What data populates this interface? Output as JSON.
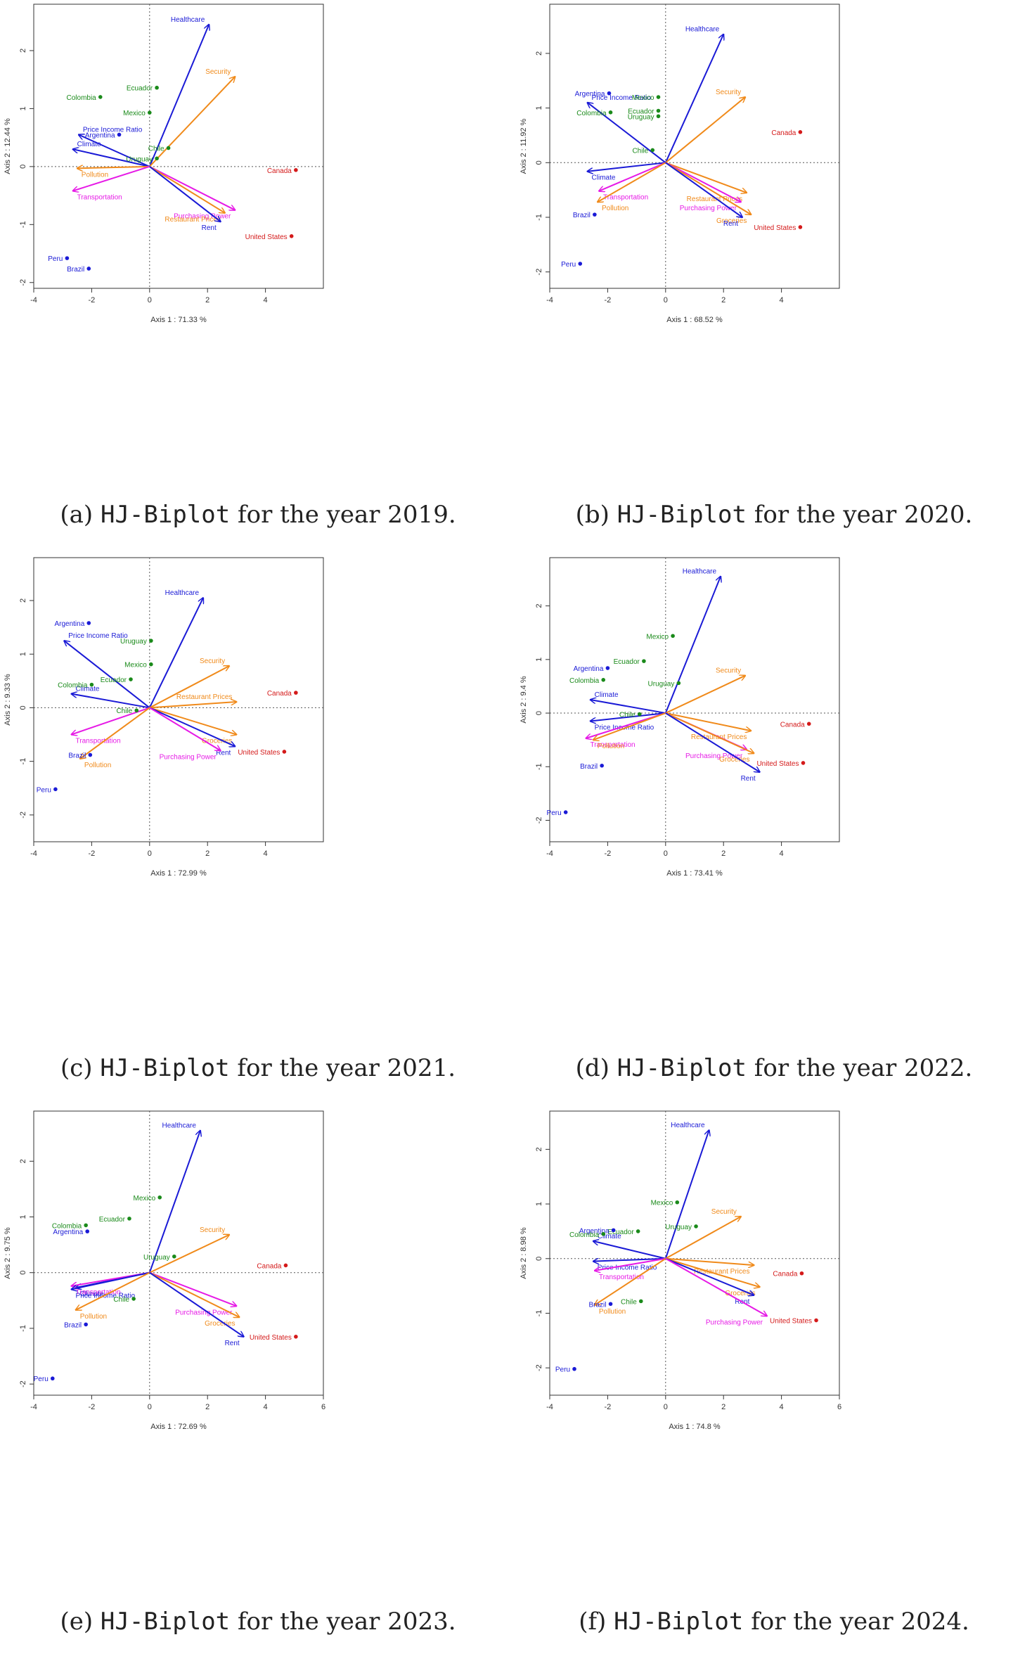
{
  "colors": {
    "green": "#1a8a1a",
    "blue": "#1a1ad6",
    "red": "#d41a1a",
    "orange": "#f08a1a",
    "magenta": "#e61ae6"
  },
  "chart_data": [
    {
      "type": "scatter",
      "title": "HJ-Biplot 2019",
      "caption_prefix": "(a)",
      "caption_mono": "HJ-Biplot",
      "caption_suffix": "for the year 2019.",
      "xlabel": "Axis 1 :  71.33 %",
      "ylabel": "Axis 2 :  12.44 %",
      "xlim": [
        -4,
        6
      ],
      "ylim": [
        -2.1,
        2.8
      ],
      "xticks": [
        "-4",
        "-2",
        "0",
        "2",
        "4"
      ],
      "yticks": [
        "-2",
        "-1",
        "0",
        "1",
        "2"
      ],
      "points": [
        {
          "label": "Ecuador",
          "x": 0.25,
          "y": 1.36,
          "color": "green"
        },
        {
          "label": "Colombia",
          "x": -1.7,
          "y": 1.2,
          "color": "green"
        },
        {
          "label": "Mexico",
          "x": 0.0,
          "y": 0.93,
          "color": "green"
        },
        {
          "label": "Argentina",
          "x": -1.05,
          "y": 0.55,
          "color": "blue"
        },
        {
          "label": "Chile",
          "x": 0.65,
          "y": 0.32,
          "color": "green"
        },
        {
          "label": "Uruguay",
          "x": 0.25,
          "y": 0.14,
          "color": "green"
        },
        {
          "label": "Canada",
          "x": 5.05,
          "y": -0.06,
          "color": "red"
        },
        {
          "label": "United States",
          "x": 4.9,
          "y": -1.2,
          "color": "red"
        },
        {
          "label": "Peru",
          "x": -2.85,
          "y": -1.58,
          "color": "blue"
        },
        {
          "label": "Brazil",
          "x": -2.1,
          "y": -1.76,
          "color": "blue"
        }
      ],
      "arrows": [
        {
          "label": "Healthcare",
          "x": 2.05,
          "y": 2.45,
          "color": "blue"
        },
        {
          "label": "Security",
          "x": 2.95,
          "y": 1.55,
          "color": "orange"
        },
        {
          "label": "Price Income Ratio",
          "x": -2.45,
          "y": 0.55,
          "color": "blue"
        },
        {
          "label": "Climate",
          "x": -2.65,
          "y": 0.3,
          "color": "blue"
        },
        {
          "label": "Pollution",
          "x": -2.5,
          "y": -0.03,
          "color": "orange"
        },
        {
          "label": "Transportation",
          "x": -2.65,
          "y": -0.42,
          "color": "magenta"
        },
        {
          "label": "Purchasing Power",
          "x": 2.95,
          "y": -0.75,
          "color": "magenta"
        },
        {
          "label": "Restaurant Prices",
          "x": 2.6,
          "y": -0.8,
          "color": "orange"
        },
        {
          "label": "Rent",
          "x": 2.45,
          "y": -0.95,
          "color": "blue"
        }
      ]
    },
    {
      "type": "scatter",
      "title": "HJ-Biplot 2020",
      "caption_prefix": "(b)",
      "caption_mono": "HJ-Biplot",
      "caption_suffix": "for the year 2020.",
      "xlabel": "Axis 1 :  68.52 %",
      "ylabel": "Axis 2 :  11.92 %",
      "xlim": [
        -4,
        6
      ],
      "ylim": [
        -2.3,
        2.9
      ],
      "xticks": [
        "-4",
        "-2",
        "0",
        "2",
        "4"
      ],
      "yticks": [
        "-2",
        "-1",
        "0",
        "1",
        "2"
      ],
      "points": [
        {
          "label": "Argentina",
          "x": -1.95,
          "y": 1.27,
          "color": "blue"
        },
        {
          "label": "Mexico",
          "x": -0.25,
          "y": 1.2,
          "color": "green"
        },
        {
          "label": "Ecuador",
          "x": -0.25,
          "y": 0.95,
          "color": "green"
        },
        {
          "label": "Colombia",
          "x": -1.9,
          "y": 0.92,
          "color": "green"
        },
        {
          "label": "Uruguay",
          "x": -0.25,
          "y": 0.85,
          "color": "green"
        },
        {
          "label": "Canada",
          "x": 4.65,
          "y": 0.56,
          "color": "red"
        },
        {
          "label": "Chile",
          "x": -0.45,
          "y": 0.23,
          "color": "green"
        },
        {
          "label": "Brazil",
          "x": -2.45,
          "y": -0.95,
          "color": "blue"
        },
        {
          "label": "United States",
          "x": 4.65,
          "y": -1.18,
          "color": "red"
        },
        {
          "label": "Peru",
          "x": -2.95,
          "y": -1.85,
          "color": "blue"
        }
      ],
      "arrows": [
        {
          "label": "Healthcare",
          "x": 2.0,
          "y": 2.35,
          "color": "blue"
        },
        {
          "label": "Security",
          "x": 2.75,
          "y": 1.2,
          "color": "orange"
        },
        {
          "label": "Price Income Ratio",
          "x": -2.7,
          "y": 1.1,
          "color": "blue"
        },
        {
          "label": "Climate",
          "x": -2.7,
          "y": -0.16,
          "color": "blue"
        },
        {
          "label": "Transportation",
          "x": -2.3,
          "y": -0.52,
          "color": "magenta"
        },
        {
          "label": "Pollution",
          "x": -2.35,
          "y": -0.72,
          "color": "orange"
        },
        {
          "label": "Restaurant Prices",
          "x": 2.8,
          "y": -0.55,
          "color": "orange"
        },
        {
          "label": "Purchasing Power",
          "x": 2.6,
          "y": -0.72,
          "color": "magenta"
        },
        {
          "label": "Groceries",
          "x": 2.95,
          "y": -0.95,
          "color": "orange"
        },
        {
          "label": "Rent",
          "x": 2.65,
          "y": -1.0,
          "color": "blue"
        }
      ]
    },
    {
      "type": "scatter",
      "title": "HJ-Biplot 2021",
      "caption_prefix": "(c)",
      "caption_mono": "HJ-Biplot",
      "caption_suffix": "for the year 2021.",
      "xlabel": "Axis 1 :  72.99 %",
      "ylabel": "Axis 2 :  9.33 %",
      "xlim": [
        -4,
        6
      ],
      "ylim": [
        -2.5,
        2.8
      ],
      "xticks": [
        "-4",
        "-2",
        "0",
        "2",
        "4"
      ],
      "yticks": [
        "-2",
        "-1",
        "0",
        "1",
        "2"
      ],
      "points": [
        {
          "label": "Argentina",
          "x": -2.1,
          "y": 1.58,
          "color": "blue"
        },
        {
          "label": "Uruguay",
          "x": 0.05,
          "y": 1.25,
          "color": "green"
        },
        {
          "label": "Mexico",
          "x": 0.05,
          "y": 0.81,
          "color": "green"
        },
        {
          "label": "Ecuador",
          "x": -0.65,
          "y": 0.53,
          "color": "green"
        },
        {
          "label": "Colombia",
          "x": -2.0,
          "y": 0.43,
          "color": "green"
        },
        {
          "label": "Canada",
          "x": 5.05,
          "y": 0.28,
          "color": "red"
        },
        {
          "label": "Chile",
          "x": -0.45,
          "y": -0.05,
          "color": "green"
        },
        {
          "label": "United States",
          "x": 4.65,
          "y": -0.82,
          "color": "red"
        },
        {
          "label": "Brazil",
          "x": -2.05,
          "y": -0.88,
          "color": "blue"
        },
        {
          "label": "Peru",
          "x": -3.25,
          "y": -1.52,
          "color": "blue"
        }
      ],
      "arrows": [
        {
          "label": "Healthcare",
          "x": 1.85,
          "y": 2.05,
          "color": "blue"
        },
        {
          "label": "Price Income Ratio",
          "x": -2.95,
          "y": 1.25,
          "color": "blue"
        },
        {
          "label": "Security",
          "x": 2.75,
          "y": 0.78,
          "color": "orange"
        },
        {
          "label": "Climate",
          "x": -2.7,
          "y": 0.26,
          "color": "blue"
        },
        {
          "label": "Restaurant Prices",
          "x": 3.0,
          "y": 0.11,
          "color": "orange"
        },
        {
          "label": "Transportation",
          "x": -2.7,
          "y": -0.5,
          "color": "magenta"
        },
        {
          "label": "Groceries",
          "x": 3.0,
          "y": -0.5,
          "color": "orange"
        },
        {
          "label": "Rent",
          "x": 2.95,
          "y": -0.72,
          "color": "blue"
        },
        {
          "label": "Purchasing Power",
          "x": 2.45,
          "y": -0.8,
          "color": "magenta"
        },
        {
          "label": "Pollution",
          "x": -2.4,
          "y": -0.95,
          "color": "orange"
        }
      ]
    },
    {
      "type": "scatter",
      "title": "HJ-Biplot 2022",
      "caption_prefix": "(d)",
      "caption_mono": "HJ-Biplot",
      "caption_suffix": "for the year 2022.",
      "xlabel": "Axis 1 :  73.41 %",
      "ylabel": "Axis 2 :  9.4 %",
      "xlim": [
        -4,
        6
      ],
      "ylim": [
        -2.4,
        2.9
      ],
      "xticks": [
        "-4",
        "-2",
        "0",
        "2",
        "4"
      ],
      "yticks": [
        "-2",
        "-1",
        "0",
        "1",
        "2"
      ],
      "points": [
        {
          "label": "Mexico",
          "x": 0.25,
          "y": 1.44,
          "color": "green"
        },
        {
          "label": "Ecuador",
          "x": -0.75,
          "y": 0.97,
          "color": "green"
        },
        {
          "label": "Argentina",
          "x": -2.0,
          "y": 0.84,
          "color": "blue"
        },
        {
          "label": "Colombia",
          "x": -2.15,
          "y": 0.62,
          "color": "green"
        },
        {
          "label": "Uruguay",
          "x": 0.45,
          "y": 0.56,
          "color": "green"
        },
        {
          "label": "Chile",
          "x": -0.9,
          "y": -0.02,
          "color": "green"
        },
        {
          "label": "Canada",
          "x": 4.95,
          "y": -0.2,
          "color": "red"
        },
        {
          "label": "United States",
          "x": 4.75,
          "y": -0.93,
          "color": "red"
        },
        {
          "label": "Brazil",
          "x": -2.2,
          "y": -0.98,
          "color": "blue"
        },
        {
          "label": "Peru",
          "x": -3.45,
          "y": -1.85,
          "color": "blue"
        }
      ],
      "arrows": [
        {
          "label": "Healthcare",
          "x": 1.9,
          "y": 2.55,
          "color": "blue"
        },
        {
          "label": "Security",
          "x": 2.75,
          "y": 0.7,
          "color": "orange"
        },
        {
          "label": "Climate",
          "x": -2.6,
          "y": 0.25,
          "color": "blue"
        },
        {
          "label": "Price Income Ratio",
          "x": -2.6,
          "y": -0.15,
          "color": "blue"
        },
        {
          "label": "Transportation",
          "x": -2.75,
          "y": -0.47,
          "color": "magenta"
        },
        {
          "label": "Pollution",
          "x": -2.5,
          "y": -0.5,
          "color": "orange"
        },
        {
          "label": "Restaurant Prices",
          "x": 2.95,
          "y": -0.33,
          "color": "orange"
        },
        {
          "label": "Purchasing Power",
          "x": 2.8,
          "y": -0.68,
          "color": "magenta"
        },
        {
          "label": "Groceries",
          "x": 3.05,
          "y": -0.75,
          "color": "orange"
        },
        {
          "label": "Rent",
          "x": 3.25,
          "y": -1.1,
          "color": "blue"
        }
      ]
    },
    {
      "type": "scatter",
      "title": "HJ-Biplot 2023",
      "caption_prefix": "(e)",
      "caption_mono": "HJ-Biplot",
      "caption_suffix": "for the year 2023.",
      "xlabel": "Axis 1 :  72.69 %",
      "ylabel": "Axis 2 :  9.75 %",
      "xlim": [
        -4,
        6
      ],
      "ylim": [
        -2.2,
        2.9
      ],
      "xticks": [
        "-4",
        "-2",
        "0",
        "2",
        "4",
        "6"
      ],
      "yticks": [
        "-2",
        "-1",
        "0",
        "1",
        "2"
      ],
      "points": [
        {
          "label": "Mexico",
          "x": 0.35,
          "y": 1.35,
          "color": "green"
        },
        {
          "label": "Ecuador",
          "x": -0.7,
          "y": 0.97,
          "color": "green"
        },
        {
          "label": "Colombia",
          "x": -2.2,
          "y": 0.85,
          "color": "green"
        },
        {
          "label": "Argentina",
          "x": -2.15,
          "y": 0.74,
          "color": "blue"
        },
        {
          "label": "Uruguay",
          "x": 0.85,
          "y": 0.29,
          "color": "green"
        },
        {
          "label": "Canada",
          "x": 4.7,
          "y": 0.13,
          "color": "red"
        },
        {
          "label": "Chile",
          "x": -0.55,
          "y": -0.47,
          "color": "green"
        },
        {
          "label": "Brazil",
          "x": -2.2,
          "y": -0.93,
          "color": "blue"
        },
        {
          "label": "United States",
          "x": 5.05,
          "y": -1.15,
          "color": "red"
        },
        {
          "label": "Peru",
          "x": -3.35,
          "y": -1.9,
          "color": "blue"
        }
      ],
      "arrows": [
        {
          "label": "Healthcare",
          "x": 1.75,
          "y": 2.55,
          "color": "blue"
        },
        {
          "label": "Security",
          "x": 2.75,
          "y": 0.68,
          "color": "orange"
        },
        {
          "label": "Climate",
          "x": -2.55,
          "y": -0.27,
          "color": "blue"
        },
        {
          "label": "Transportation",
          "x": -2.7,
          "y": -0.24,
          "color": "magenta"
        },
        {
          "label": "Price Income Ratio",
          "x": -2.7,
          "y": -0.3,
          "color": "blue"
        },
        {
          "label": "Pollution",
          "x": -2.55,
          "y": -0.67,
          "color": "orange"
        },
        {
          "label": "Purchasing Power",
          "x": 3.0,
          "y": -0.6,
          "color": "magenta"
        },
        {
          "label": "Groceries",
          "x": 3.1,
          "y": -0.8,
          "color": "orange"
        },
        {
          "label": "Rent",
          "x": 3.25,
          "y": -1.15,
          "color": "blue"
        }
      ]
    },
    {
      "type": "scatter",
      "title": "HJ-Biplot 2024",
      "caption_prefix": "(f)",
      "caption_mono": "HJ-Biplot",
      "caption_suffix": "for the year 2024.",
      "xlabel": "Axis 1 :  74.8 %",
      "ylabel": "Axis 2 :  8.98 %",
      "xlim": [
        -4,
        6
      ],
      "ylim": [
        -2.5,
        2.7
      ],
      "xticks": [
        "-4",
        "-2",
        "0",
        "2",
        "4",
        "6"
      ],
      "yticks": [
        "-2",
        "-1",
        "0",
        "1",
        "2"
      ],
      "points": [
        {
          "label": "Mexico",
          "x": 0.4,
          "y": 1.03,
          "color": "green"
        },
        {
          "label": "Uruguay",
          "x": 1.05,
          "y": 0.59,
          "color": "green"
        },
        {
          "label": "Ecuador",
          "x": -0.95,
          "y": 0.5,
          "color": "green"
        },
        {
          "label": "Argentina",
          "x": -1.8,
          "y": 0.52,
          "color": "blue"
        },
        {
          "label": "Colombia",
          "x": -2.15,
          "y": 0.45,
          "color": "green"
        },
        {
          "label": "Canada",
          "x": 4.7,
          "y": -0.27,
          "color": "red"
        },
        {
          "label": "Chile",
          "x": -0.85,
          "y": -0.78,
          "color": "green"
        },
        {
          "label": "Brazil",
          "x": -1.9,
          "y": -0.83,
          "color": "blue"
        },
        {
          "label": "United States",
          "x": 5.2,
          "y": -1.13,
          "color": "red"
        },
        {
          "label": "Peru",
          "x": -3.15,
          "y": -2.02,
          "color": "blue"
        }
      ],
      "arrows": [
        {
          "label": "Healthcare",
          "x": 1.5,
          "y": 2.35,
          "color": "blue"
        },
        {
          "label": "Security",
          "x": 2.6,
          "y": 0.77,
          "color": "orange"
        },
        {
          "label": "Climate",
          "x": -2.5,
          "y": 0.32,
          "color": "blue"
        },
        {
          "label": "Price Income Ratio",
          "x": -2.5,
          "y": -0.05,
          "color": "blue"
        },
        {
          "label": "Transportation",
          "x": -2.45,
          "y": -0.22,
          "color": "magenta"
        },
        {
          "label": "Restaurant Prices",
          "x": 3.05,
          "y": -0.12,
          "color": "orange"
        },
        {
          "label": "Groceries",
          "x": 3.25,
          "y": -0.52,
          "color": "orange"
        },
        {
          "label": "Rent",
          "x": 3.05,
          "y": -0.67,
          "color": "blue"
        },
        {
          "label": "Pollution",
          "x": -2.45,
          "y": -0.85,
          "color": "orange"
        },
        {
          "label": "Purchasing Power",
          "x": 3.5,
          "y": -1.05,
          "color": "magenta"
        }
      ]
    }
  ]
}
